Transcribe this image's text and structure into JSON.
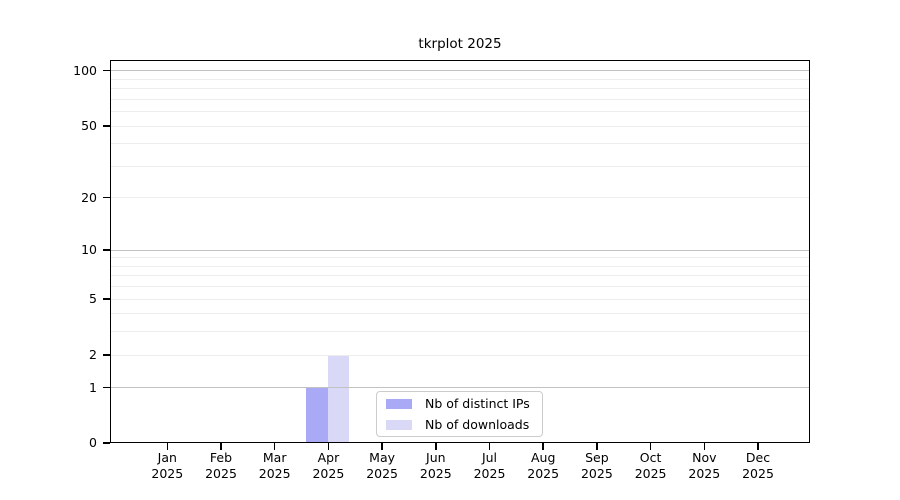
{
  "figure": {
    "title": "tkrplot 2025"
  },
  "colors": {
    "distinct_ips": "#a9a9f5",
    "downloads": "#d9d9f7",
    "major_gridline": "#c2c2c2",
    "minor_gridline": "#ededed",
    "axis": "#000000",
    "legend_border": "#cccccc",
    "background": "#ffffff",
    "text": "#000000"
  },
  "legend": {
    "items": [
      {
        "label": "Nb of distinct IPs",
        "color_key": "distinct_ips"
      },
      {
        "label": "Nb of downloads",
        "color_key": "downloads"
      }
    ]
  },
  "chart_data": {
    "type": "bar",
    "title": "tkrplot 2025",
    "x_months": [
      "Jan",
      "Feb",
      "Mar",
      "Apr",
      "May",
      "Jun",
      "Jul",
      "Aug",
      "Sep",
      "Oct",
      "Nov",
      "Dec"
    ],
    "x_year": "2025",
    "series": [
      {
        "name": "Nb of distinct IPs",
        "color": "#a9a9f5",
        "values": [
          0,
          0,
          0,
          1,
          0,
          0,
          0,
          0,
          0,
          0,
          0,
          0
        ]
      },
      {
        "name": "Nb of downloads",
        "color": "#d9d9f7",
        "values": [
          0,
          0,
          0,
          2,
          0,
          0,
          0,
          0,
          0,
          0,
          0,
          0
        ]
      }
    ],
    "y_axis": {
      "scale": "log10(value+1)",
      "tick_values": [
        0,
        1,
        2,
        5,
        10,
        20,
        50,
        100
      ],
      "tick_labels": [
        "0",
        "1",
        "2",
        "5",
        "10",
        "20",
        "50",
        "100"
      ],
      "major_gridlines": [
        1,
        10,
        100
      ],
      "minor_gridlines": [
        2,
        3,
        4,
        5,
        6,
        7,
        8,
        9,
        20,
        30,
        40,
        50,
        60,
        70,
        80,
        90
      ],
      "ylim": [
        0,
        100
      ]
    },
    "legend_position": "bottom-center",
    "grid": true
  }
}
